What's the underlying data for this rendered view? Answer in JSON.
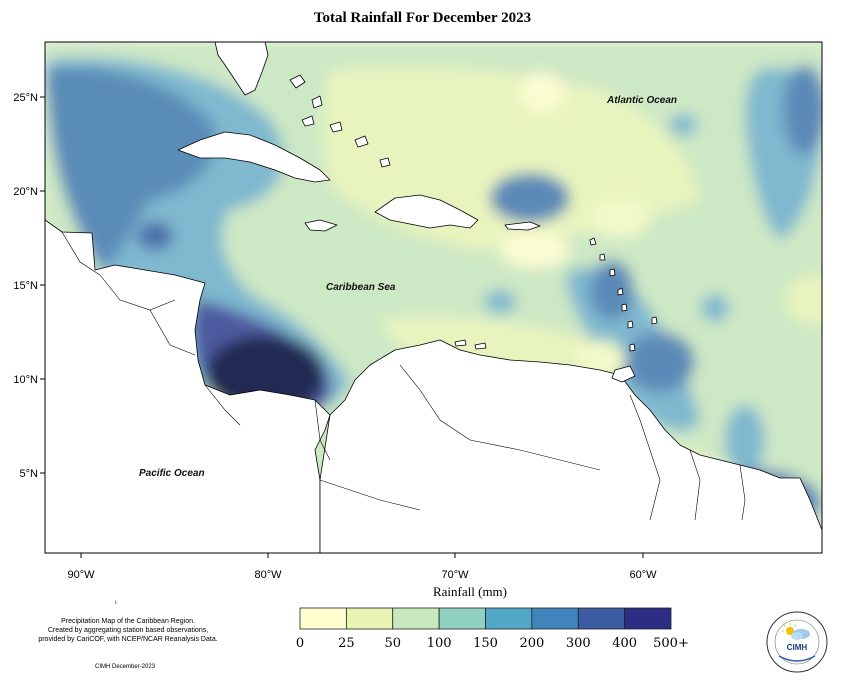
{
  "title": "Total Rainfall For December 2023",
  "axes": {
    "x_ticks": [
      "90°W",
      "80°W",
      "70°W",
      "60°W"
    ],
    "y_ticks": [
      "25°N",
      "20°N",
      "15°N",
      "10°N",
      "5°N"
    ]
  },
  "ocean_labels": {
    "atlantic": "Atlantic Ocean",
    "caribbean": "Caribbean Sea",
    "pacific": "Pacific Ocean"
  },
  "legend": {
    "title": "Rainfall (mm)",
    "ticks": [
      "0",
      "25",
      "50",
      "100",
      "150",
      "200",
      "300",
      "400",
      "500+"
    ],
    "colors": [
      "#ffffcf",
      "#e7f4b4",
      "#c8e8c0",
      "#8fd0c0",
      "#52a7c8",
      "#3f85bc",
      "#3b5ca3",
      "#2c2e83",
      "#0f1b4d"
    ]
  },
  "description": {
    "line1": "Precipitation Map of the Caribbean Region.",
    "line2": "Created by aggregating station based observations,",
    "line3": "provided by CariCOF, with NCEP/NCAR Reanalysis Data."
  },
  "credit": "CIMH December-2023",
  "logo": {
    "text": "CIMH",
    "icon": "sun-cloud-icon"
  },
  "land_color": "#ffffff",
  "outline_color": "#000000"
}
